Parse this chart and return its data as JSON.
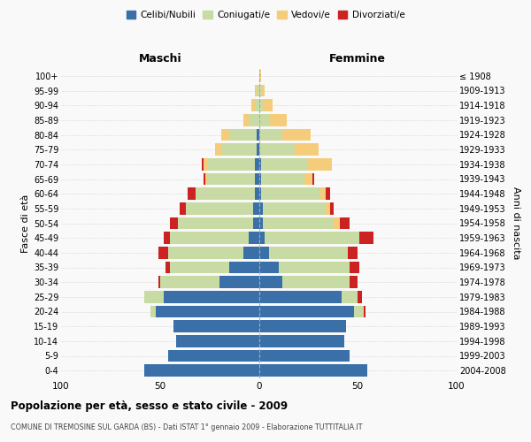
{
  "age_groups": [
    "0-4",
    "5-9",
    "10-14",
    "15-19",
    "20-24",
    "25-29",
    "30-34",
    "35-39",
    "40-44",
    "45-49",
    "50-54",
    "55-59",
    "60-64",
    "65-69",
    "70-74",
    "75-79",
    "80-84",
    "85-89",
    "90-94",
    "95-99",
    "100+"
  ],
  "birth_years": [
    "2004-2008",
    "1999-2003",
    "1994-1998",
    "1989-1993",
    "1984-1988",
    "1979-1983",
    "1974-1978",
    "1969-1973",
    "1964-1968",
    "1959-1963",
    "1954-1958",
    "1949-1953",
    "1944-1948",
    "1939-1943",
    "1934-1938",
    "1929-1933",
    "1924-1928",
    "1919-1923",
    "1914-1918",
    "1909-1913",
    "≤ 1908"
  ],
  "maschi": {
    "celibi": [
      58,
      46,
      42,
      43,
      52,
      48,
      20,
      15,
      8,
      5,
      3,
      3,
      2,
      2,
      2,
      1,
      1,
      0,
      0,
      0,
      0
    ],
    "coniugati": [
      0,
      0,
      0,
      0,
      3,
      10,
      30,
      30,
      38,
      40,
      38,
      34,
      30,
      24,
      24,
      18,
      14,
      5,
      2,
      1,
      0
    ],
    "vedovi": [
      0,
      0,
      0,
      0,
      0,
      0,
      0,
      0,
      0,
      0,
      0,
      0,
      0,
      1,
      2,
      3,
      4,
      3,
      2,
      1,
      0
    ],
    "divorziati": [
      0,
      0,
      0,
      0,
      0,
      0,
      1,
      2,
      5,
      3,
      4,
      3,
      4,
      1,
      1,
      0,
      0,
      0,
      0,
      0,
      0
    ]
  },
  "femmine": {
    "nubili": [
      55,
      46,
      43,
      44,
      48,
      42,
      12,
      10,
      5,
      3,
      2,
      2,
      1,
      1,
      1,
      0,
      0,
      0,
      0,
      0,
      0
    ],
    "coniugate": [
      0,
      0,
      0,
      0,
      5,
      8,
      34,
      36,
      40,
      48,
      36,
      32,
      30,
      22,
      24,
      18,
      12,
      5,
      2,
      1,
      0
    ],
    "vedove": [
      0,
      0,
      0,
      0,
      0,
      0,
      0,
      0,
      0,
      0,
      3,
      2,
      3,
      4,
      12,
      12,
      14,
      9,
      5,
      2,
      1
    ],
    "divorziate": [
      0,
      0,
      0,
      0,
      1,
      2,
      4,
      5,
      5,
      7,
      5,
      2,
      2,
      1,
      0,
      0,
      0,
      0,
      0,
      0,
      0
    ]
  },
  "color_celibi": "#3a6fa8",
  "color_coniugati": "#c8dba4",
  "color_vedovi": "#f5cc7a",
  "color_divorziati": "#cc2222",
  "title1": "Popolazione per età, sesso e stato civile - 2009",
  "title2": "COMUNE DI TREMOSINE SUL GARDA (BS) - Dati ISTAT 1° gennaio 2009 - Elaborazione TUTTITALIA.IT",
  "xlabel_left": "Maschi",
  "xlabel_right": "Femmine",
  "ylabel_left": "Fasce di età",
  "ylabel_right": "Anni di nascita",
  "xlim": 100,
  "background": "#f9f9f9",
  "grid_color": "#dddddd"
}
